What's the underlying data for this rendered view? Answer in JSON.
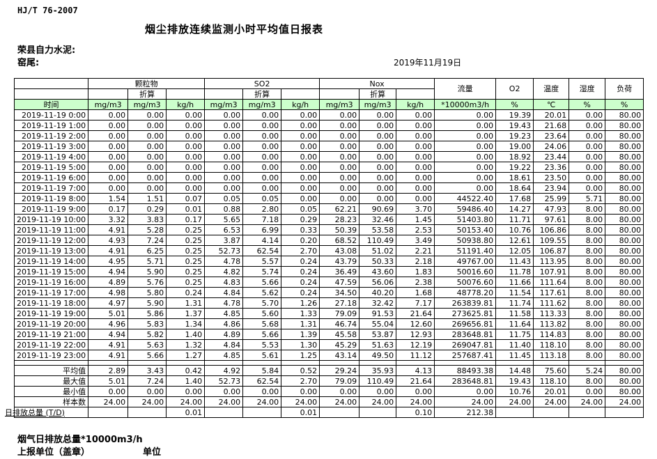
{
  "page": {
    "standard": "HJ/T 76-2007",
    "title": "烟尘排放连续监测小时平均值日报表",
    "company": "荣县自力水泥:",
    "site": "窑尾:",
    "date": "2019年11月19日",
    "footer_note": "烟气日排放总量*10000m3/h",
    "footer_report_unit": "上报单位（盖章）",
    "footer_unit": "单位"
  },
  "table": {
    "header": {
      "time_label": "时间",
      "converted_label": "折算",
      "groups": [
        "颗粒物",
        "SO2",
        "Nox"
      ],
      "singles": [
        "流量",
        "O2",
        "温度",
        "湿度",
        "负荷"
      ],
      "units": [
        "mg/m3",
        "mg/m3",
        "kg/h",
        "mg/m3",
        "mg/m3",
        "kg/h",
        "mg/m3",
        "mg/m3",
        "kg/h",
        "*10000m3/h",
        "%",
        "℃",
        "%",
        "%"
      ]
    },
    "colors": {
      "header_green": "#ccffcc",
      "border": "#000000"
    },
    "rows": [
      [
        "2019-11-19 0:00",
        "0.00",
        "0.00",
        "0.00",
        "0.00",
        "0.00",
        "0.00",
        "0.00",
        "0.00",
        "0.00",
        "0.00",
        "19.39",
        "20.01",
        "0.00",
        "80.00"
      ],
      [
        "2019-11-19 1:00",
        "0.00",
        "0.00",
        "0.00",
        "0.00",
        "0.00",
        "0.00",
        "0.00",
        "0.00",
        "0.00",
        "0.00",
        "19.43",
        "21.68",
        "0.00",
        "80.00"
      ],
      [
        "2019-11-19 2:00",
        "0.00",
        "0.00",
        "0.00",
        "0.00",
        "0.00",
        "0.00",
        "0.00",
        "0.00",
        "0.00",
        "0.00",
        "19.23",
        "23.64",
        "0.00",
        "80.00"
      ],
      [
        "2019-11-19 3:00",
        "0.00",
        "0.00",
        "0.00",
        "0.00",
        "0.00",
        "0.00",
        "0.00",
        "0.00",
        "0.00",
        "0.00",
        "19.00",
        "24.06",
        "0.00",
        "80.00"
      ],
      [
        "2019-11-19 4:00",
        "0.00",
        "0.00",
        "0.00",
        "0.00",
        "0.00",
        "0.00",
        "0.00",
        "0.00",
        "0.00",
        "0.00",
        "18.92",
        "23.44",
        "0.00",
        "80.00"
      ],
      [
        "2019-11-19 5:00",
        "0.00",
        "0.00",
        "0.00",
        "0.00",
        "0.00",
        "0.00",
        "0.00",
        "0.00",
        "0.00",
        "0.00",
        "19.22",
        "23.36",
        "0.00",
        "80.00"
      ],
      [
        "2019-11-19 6:00",
        "0.00",
        "0.00",
        "0.00",
        "0.00",
        "0.00",
        "0.00",
        "0.00",
        "0.00",
        "0.00",
        "0.00",
        "18.61",
        "23.50",
        "0.00",
        "80.00"
      ],
      [
        "2019-11-19 7:00",
        "0.00",
        "0.00",
        "0.00",
        "0.00",
        "0.00",
        "0.00",
        "0.00",
        "0.00",
        "0.00",
        "0.00",
        "18.64",
        "23.94",
        "0.00",
        "80.00"
      ],
      [
        "2019-11-19 8:00",
        "1.54",
        "1.51",
        "0.07",
        "0.05",
        "0.05",
        "0.00",
        "0.00",
        "0.00",
        "0.00",
        "44522.40",
        "17.68",
        "25.99",
        "5.71",
        "80.00"
      ],
      [
        "2019-11-19 9:00",
        "0.17",
        "0.29",
        "0.01",
        "0.88",
        "2.80",
        "0.05",
        "62.21",
        "90.69",
        "3.70",
        "59486.40",
        "14.27",
        "47.93",
        "8.00",
        "80.00"
      ],
      [
        "2019-11-19 10:00",
        "3.32",
        "3.83",
        "0.17",
        "5.65",
        "7.18",
        "0.29",
        "28.23",
        "32.46",
        "1.45",
        "51403.80",
        "11.71",
        "97.61",
        "8.00",
        "80.00"
      ],
      [
        "2019-11-19 11:00",
        "4.91",
        "5.28",
        "0.25",
        "6.53",
        "6.99",
        "0.33",
        "50.39",
        "53.58",
        "2.53",
        "50153.40",
        "10.76",
        "106.86",
        "8.00",
        "80.00"
      ],
      [
        "2019-11-19 12:00",
        "4.93",
        "7.24",
        "0.25",
        "3.87",
        "4.14",
        "0.20",
        "68.52",
        "110.49",
        "3.49",
        "50938.80",
        "12.61",
        "109.55",
        "8.00",
        "80.00"
      ],
      [
        "2019-11-19 13:00",
        "4.91",
        "6.25",
        "0.25",
        "52.73",
        "62.54",
        "2.70",
        "43.08",
        "51.02",
        "2.21",
        "51191.40",
        "12.05",
        "106.87",
        "8.00",
        "80.00"
      ],
      [
        "2019-11-19 14:00",
        "4.95",
        "5.71",
        "0.25",
        "4.78",
        "5.57",
        "0.24",
        "43.79",
        "50.33",
        "2.18",
        "49767.00",
        "11.43",
        "113.95",
        "8.00",
        "80.00"
      ],
      [
        "2019-11-19 15:00",
        "4.94",
        "5.90",
        "0.25",
        "4.82",
        "5.74",
        "0.24",
        "36.49",
        "43.60",
        "1.83",
        "50016.60",
        "11.78",
        "107.91",
        "8.00",
        "80.00"
      ],
      [
        "2019-11-19 16:00",
        "4.89",
        "5.76",
        "0.25",
        "4.83",
        "5.66",
        "0.24",
        "47.59",
        "56.06",
        "2.38",
        "50076.60",
        "11.66",
        "111.64",
        "8.00",
        "80.00"
      ],
      [
        "2019-11-19 17:00",
        "4.98",
        "5.80",
        "0.24",
        "4.84",
        "5.62",
        "0.24",
        "34.50",
        "40.20",
        "1.68",
        "48778.20",
        "11.54",
        "117.61",
        "8.00",
        "80.00"
      ],
      [
        "2019-11-19 18:00",
        "4.97",
        "5.90",
        "1.31",
        "4.78",
        "5.70",
        "1.26",
        "27.18",
        "32.42",
        "7.17",
        "263839.81",
        "11.74",
        "111.62",
        "8.00",
        "80.00"
      ],
      [
        "2019-11-19 19:00",
        "5.01",
        "5.86",
        "1.37",
        "4.85",
        "5.60",
        "1.33",
        "79.09",
        "91.53",
        "21.64",
        "273625.81",
        "11.58",
        "113.33",
        "8.00",
        "80.00"
      ],
      [
        "2019-11-19 20:00",
        "4.96",
        "5.83",
        "1.34",
        "4.86",
        "5.68",
        "1.31",
        "46.74",
        "55.04",
        "12.60",
        "269656.81",
        "11.64",
        "113.82",
        "8.00",
        "80.00"
      ],
      [
        "2019-11-19 21:00",
        "4.94",
        "5.82",
        "1.40",
        "4.89",
        "5.66",
        "1.39",
        "45.58",
        "53.87",
        "12.93",
        "283648.81",
        "11.75",
        "114.83",
        "8.00",
        "80.00"
      ],
      [
        "2019-11-19 22:00",
        "4.91",
        "5.63",
        "1.32",
        "4.84",
        "5.53",
        "1.30",
        "45.29",
        "51.63",
        "12.19",
        "269047.81",
        "11.40",
        "118.10",
        "8.00",
        "80.00"
      ],
      [
        "2019-11-19 23:00",
        "4.91",
        "5.66",
        "1.27",
        "4.85",
        "5.61",
        "1.25",
        "43.14",
        "49.50",
        "11.12",
        "257687.41",
        "11.45",
        "113.18",
        "8.00",
        "80.00"
      ]
    ],
    "summary": [
      [
        "平均值",
        "2.89",
        "3.43",
        "0.42",
        "4.92",
        "5.84",
        "0.52",
        "29.24",
        "35.93",
        "4.13",
        "88493.38",
        "14.48",
        "75.60",
        "5.24",
        "80.00"
      ],
      [
        "最大值",
        "5.01",
        "7.24",
        "1.40",
        "52.73",
        "62.54",
        "2.70",
        "79.09",
        "110.49",
        "21.64",
        "283648.81",
        "19.43",
        "118.10",
        "8.00",
        "80.00"
      ],
      [
        "最小值",
        "0.00",
        "0.00",
        "0.00",
        "0.00",
        "0.00",
        "0.00",
        "0.00",
        "0.00",
        "0.00",
        "0.00",
        "10.76",
        "20.01",
        "0.00",
        "80.00"
      ],
      [
        "样本数",
        "24.00",
        "24.00",
        "24.00",
        "24.00",
        "24.00",
        "24.00",
        "24.00",
        "24.00",
        "24.00",
        "24.00",
        "24.00",
        "24.00",
        "24.00",
        "24.00"
      ],
      [
        "日排放总量 (T/D)",
        "",
        "",
        "0.01",
        "",
        "",
        "0.01",
        "",
        "",
        "0.10",
        "212.38",
        "",
        "",
        "",
        ""
      ]
    ]
  }
}
